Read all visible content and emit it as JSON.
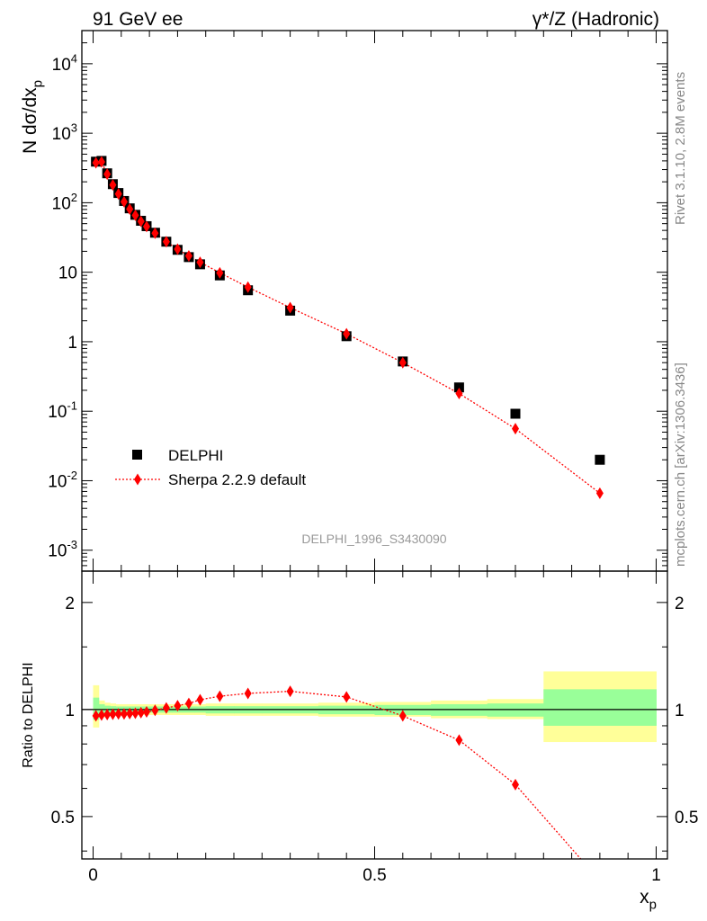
{
  "header": {
    "left_title": "91 GeV ee",
    "right_title": "γ*/Z (Hadronic)"
  },
  "side_labels": {
    "rivet": "Rivet 3.1.10,  2.8M events",
    "mcplots": "mcplots.cern.ch [arXiv:1306.3436]"
  },
  "analysis_tag": "DELPHI_1996_S3430090",
  "chart_data": [
    {
      "type": "scatter",
      "panel": "main",
      "ylabel": "N dσ/dx_p",
      "yscale": "log",
      "ylim": [
        0.0005,
        30000
      ],
      "xlim": [
        -0.02,
        1.02
      ],
      "y_tick_labels": [
        "10^-3",
        "10^-2",
        "10^-1",
        "1",
        "10",
        "10^2",
        "10^3",
        "10^4"
      ],
      "legend": {
        "position": "lower-left",
        "entries": [
          "DELPHI",
          "Sherpa 2.2.9 default"
        ]
      },
      "series": [
        {
          "name": "DELPHI",
          "marker": "square",
          "color": "#000000",
          "x": [
            0.005,
            0.015,
            0.025,
            0.035,
            0.045,
            0.055,
            0.065,
            0.075,
            0.085,
            0.095,
            0.11,
            0.13,
            0.15,
            0.17,
            0.19,
            0.225,
            0.275,
            0.35,
            0.45,
            0.55,
            0.65,
            0.75,
            0.9
          ],
          "y": [
            390,
            400,
            265,
            185,
            138,
            106,
            83,
            67,
            55,
            46,
            37,
            27.5,
            21,
            16.5,
            13,
            9.0,
            5.5,
            2.8,
            1.2,
            0.52,
            0.22,
            0.092,
            0.02
          ]
        },
        {
          "name": "Sherpa 2.2.9 default",
          "marker": "diamond",
          "line": "dotted",
          "color": "#ff0000",
          "x": [
            0.005,
            0.015,
            0.025,
            0.035,
            0.045,
            0.055,
            0.065,
            0.075,
            0.085,
            0.095,
            0.11,
            0.13,
            0.15,
            0.17,
            0.19,
            0.225,
            0.275,
            0.35,
            0.45,
            0.55,
            0.65,
            0.75,
            0.9
          ],
          "y": [
            375,
            387,
            258,
            180,
            134,
            103,
            81,
            66,
            54,
            45.5,
            36.5,
            27.5,
            21.5,
            17.2,
            13.9,
            9.8,
            6.1,
            3.1,
            1.3,
            0.5,
            0.18,
            0.056,
            0.0066
          ]
        }
      ]
    },
    {
      "type": "line",
      "panel": "ratio",
      "xlabel": "x_p",
      "ylabel": "Ratio to DELPHI",
      "yscale": "log",
      "ylim": [
        0.38,
        2.45
      ],
      "xlim": [
        -0.02,
        1.02
      ],
      "x_tick_labels": [
        "0",
        "0.5",
        "1"
      ],
      "y_tick_labels": [
        "0.5",
        "1",
        "2"
      ],
      "reference_line": 1,
      "uncertainty_bands": {
        "bin_edges": [
          0,
          0.01,
          0.02,
          0.03,
          0.04,
          0.05,
          0.06,
          0.07,
          0.08,
          0.09,
          0.1,
          0.12,
          0.14,
          0.16,
          0.18,
          0.2,
          0.25,
          0.3,
          0.4,
          0.5,
          0.6,
          0.7,
          0.8,
          1.0
        ],
        "outer": {
          "color": "#ffff99",
          "low": [
            0.89,
            0.95,
            0.96,
            0.965,
            0.965,
            0.965,
            0.965,
            0.965,
            0.965,
            0.965,
            0.965,
            0.965,
            0.965,
            0.965,
            0.965,
            0.96,
            0.96,
            0.96,
            0.955,
            0.955,
            0.945,
            0.94,
            0.81
          ],
          "high": [
            1.17,
            1.06,
            1.045,
            1.04,
            1.035,
            1.035,
            1.035,
            1.035,
            1.035,
            1.035,
            1.035,
            1.035,
            1.035,
            1.035,
            1.035,
            1.04,
            1.04,
            1.04,
            1.045,
            1.05,
            1.06,
            1.07,
            1.28
          ]
        },
        "inner": {
          "color": "#99ff99",
          "low": [
            0.935,
            0.965,
            0.975,
            0.98,
            0.98,
            0.98,
            0.98,
            0.98,
            0.98,
            0.98,
            0.98,
            0.98,
            0.98,
            0.98,
            0.98,
            0.975,
            0.975,
            0.975,
            0.97,
            0.965,
            0.96,
            0.955,
            0.9
          ],
          "high": [
            1.08,
            1.035,
            1.025,
            1.022,
            1.02,
            1.02,
            1.02,
            1.02,
            1.02,
            1.02,
            1.02,
            1.02,
            1.02,
            1.02,
            1.02,
            1.022,
            1.022,
            1.022,
            1.025,
            1.03,
            1.035,
            1.04,
            1.14
          ]
        }
      },
      "series": [
        {
          "name": "Sherpa 2.2.9 default",
          "marker": "diamond",
          "line": "dotted",
          "color": "#ff0000",
          "x": [
            0.005,
            0.015,
            0.025,
            0.035,
            0.045,
            0.055,
            0.065,
            0.075,
            0.085,
            0.095,
            0.11,
            0.13,
            0.15,
            0.17,
            0.19,
            0.225,
            0.275,
            0.35,
            0.45,
            0.55,
            0.65,
            0.75,
            0.9
          ],
          "y": [
            0.96,
            0.965,
            0.968,
            0.97,
            0.972,
            0.972,
            0.974,
            0.976,
            0.98,
            0.985,
            0.995,
            1.01,
            1.025,
            1.04,
            1.065,
            1.09,
            1.11,
            1.125,
            1.085,
            0.96,
            0.82,
            0.615,
            0.33
          ]
        }
      ]
    }
  ]
}
